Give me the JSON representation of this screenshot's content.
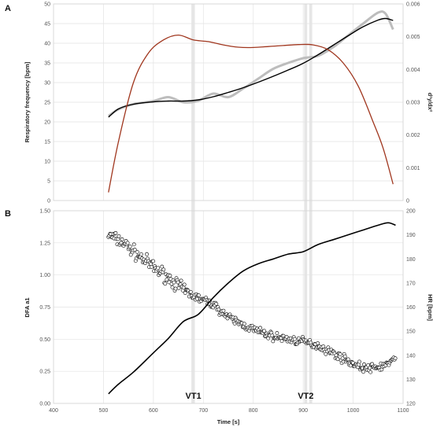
{
  "chart_data": [
    {
      "panel": "A",
      "type": "line",
      "ylabel": "Respiratory frequency [bpm]",
      "y2label": "d²y/dx²",
      "ylim": [
        0,
        50
      ],
      "y2lim": [
        0,
        0.006
      ],
      "yticks": [
        "0",
        "5",
        "10",
        "15",
        "20",
        "25",
        "30",
        "35",
        "40",
        "45",
        "50"
      ],
      "y2ticks": [
        "0",
        "0.001",
        "0.002",
        "0.003",
        "0.004",
        "0.005",
        "0.006"
      ],
      "xlim": [
        400,
        1100
      ],
      "grid": true,
      "series": [
        {
          "axis": "left",
          "color": "#bdbdbd",
          "x": [
            510,
            530,
            560,
            600,
            630,
            660,
            690,
            720,
            750,
            780,
            810,
            840,
            870,
            900,
            930,
            960,
            990,
            1020,
            1050,
            1065,
            1080
          ],
          "y": [
            21.5,
            23.2,
            24.5,
            25.3,
            26.3,
            25.0,
            25.4,
            27.2,
            26.3,
            28.5,
            31.0,
            33.5,
            35.0,
            36.2,
            36.8,
            39.0,
            42.0,
            45.0,
            47.8,
            47.5,
            43.5
          ]
        },
        {
          "axis": "left",
          "color": "#000000",
          "x": [
            510,
            530,
            560,
            600,
            630,
            660,
            690,
            720,
            750,
            780,
            810,
            840,
            870,
            900,
            930,
            960,
            990,
            1020,
            1050,
            1065,
            1080
          ],
          "y": [
            21.2,
            23.3,
            24.5,
            25.1,
            25.3,
            25.3,
            25.6,
            26.4,
            27.5,
            28.7,
            30.1,
            31.6,
            33.2,
            34.9,
            37.1,
            39.5,
            41.9,
            44.2,
            45.9,
            46.3,
            45.8
          ]
        },
        {
          "axis": "right",
          "color": "#a0361e",
          "x": [
            510,
            530,
            560,
            590,
            620,
            650,
            680,
            710,
            740,
            770,
            800,
            830,
            860,
            890,
            920,
            950,
            980,
            1010,
            1040,
            1060,
            1080
          ],
          "y": [
            0.00025,
            0.0018,
            0.0036,
            0.0045,
            0.0049,
            0.00505,
            0.0049,
            0.00485,
            0.00475,
            0.00468,
            0.00467,
            0.0047,
            0.00473,
            0.00476,
            0.00475,
            0.0046,
            0.0042,
            0.0035,
            0.0024,
            0.0016,
            0.0005
          ]
        }
      ]
    },
    {
      "panel": "B",
      "type": "scatter",
      "xlabel": "Time [s]",
      "ylabel": "DFA a1",
      "y2label": "HR [bpm]",
      "xlim": [
        400,
        1100
      ],
      "ylim": [
        0,
        1.5
      ],
      "y2lim": [
        120,
        200
      ],
      "xticks": [
        "400",
        "500",
        "600",
        "700",
        "800",
        "900",
        "1000",
        "1100"
      ],
      "yticks": [
        "0.00",
        "0.25",
        "0.50",
        "0.75",
        "1.00",
        "1.25",
        "1.50"
      ],
      "y2ticks": [
        "120",
        "130",
        "140",
        "150",
        "160",
        "170",
        "180",
        "190",
        "200"
      ],
      "grid": true,
      "dfa_trend": {
        "x": [
          510,
          540,
          570,
          600,
          630,
          660,
          690,
          720,
          750,
          780,
          810,
          840,
          870,
          900,
          930,
          960,
          990,
          1010,
          1030,
          1050,
          1070,
          1085
        ],
        "y": [
          1.31,
          1.25,
          1.15,
          1.06,
          0.98,
          0.88,
          0.82,
          0.77,
          0.67,
          0.61,
          0.56,
          0.52,
          0.5,
          0.48,
          0.45,
          0.39,
          0.33,
          0.29,
          0.27,
          0.28,
          0.31,
          0.34
        ],
        "scatter_sd": 0.035
      },
      "hr_series": {
        "color": "#000000",
        "x": [
          510,
          530,
          560,
          600,
          630,
          660,
          690,
          720,
          750,
          780,
          810,
          840,
          870,
          900,
          930,
          960,
          990,
          1020,
          1050,
          1070,
          1085
        ],
        "y": [
          124,
          128,
          133,
          141,
          147,
          154,
          157,
          164,
          170,
          175,
          178,
          180,
          182,
          183,
          186,
          188,
          190,
          192,
          194,
          195,
          194
        ]
      },
      "annotations": [
        {
          "label": "VT1",
          "x": 680
        },
        {
          "label": "VT2",
          "x": 905
        }
      ]
    }
  ],
  "panel_labels": [
    "A",
    "B"
  ],
  "threshold_bands": [
    {
      "x0": 676,
      "x1": 683
    },
    {
      "x0": 902,
      "x1": 908
    },
    {
      "x0": 912,
      "x1": 918
    }
  ]
}
